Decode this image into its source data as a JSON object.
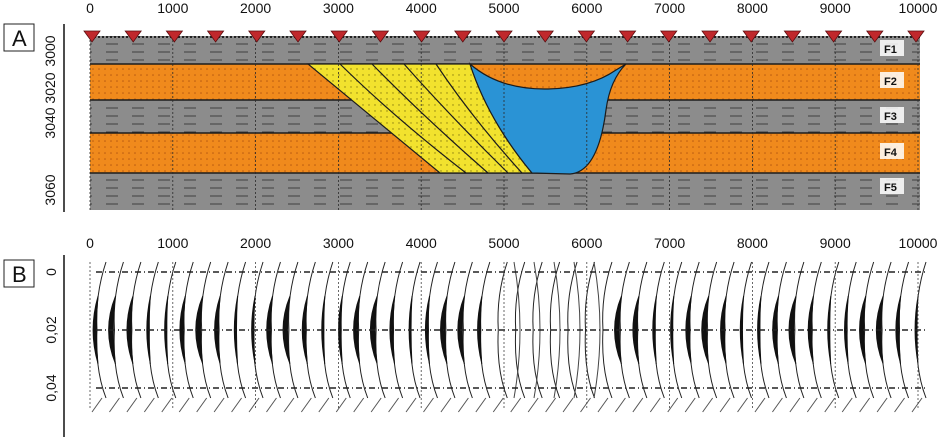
{
  "panel_a": {
    "label": "A",
    "x_ticks": [
      "0",
      "1000",
      "2000",
      "3000",
      "4000",
      "5000",
      "6000",
      "7000",
      "8000",
      "9000",
      "10000"
    ],
    "y_ticks": [
      "3000",
      "3020",
      "3040",
      "3060"
    ],
    "layers": [
      {
        "name": "F1",
        "color": "#8c8c8c"
      },
      {
        "name": "F2",
        "color": "#f08a1c"
      },
      {
        "name": "F3",
        "color": "#8c8c8c"
      },
      {
        "name": "F4",
        "color": "#f08a1c"
      },
      {
        "name": "F5",
        "color": "#8c8c8c"
      }
    ],
    "receiver_color": "#c0282c",
    "wedge_color": "#f2e22e",
    "channel_color": "#2a93d5",
    "receiver_count": 21
  },
  "panel_b": {
    "label": "B",
    "x_ticks": [
      "0",
      "1000",
      "2000",
      "3000",
      "4000",
      "5000",
      "6000",
      "7000",
      "8000",
      "9000",
      "10000"
    ],
    "y_ticks": [
      "0",
      "0,02",
      "0,04"
    ]
  }
}
